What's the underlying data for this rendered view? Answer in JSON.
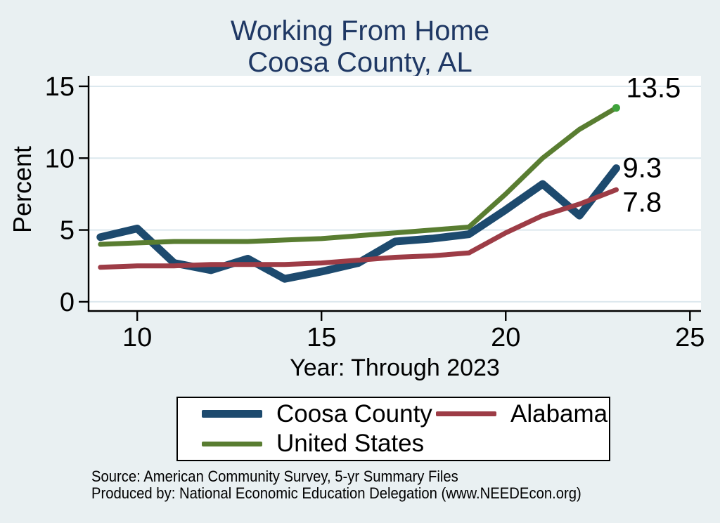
{
  "title": {
    "line1": "Working From Home",
    "line2": "Coosa County, AL"
  },
  "chart_data": {
    "type": "line",
    "x": [
      9,
      10,
      11,
      12,
      13,
      14,
      15,
      16,
      17,
      18,
      19,
      20,
      21,
      22,
      23
    ],
    "series": [
      {
        "name": "Coosa County",
        "color": "#1d4a6e",
        "line_width": 11,
        "end_label": "9.3",
        "values": [
          4.5,
          5.1,
          2.7,
          2.2,
          3.0,
          1.6,
          2.1,
          2.7,
          4.2,
          4.4,
          4.7,
          6.4,
          8.2,
          6.0,
          9.3
        ]
      },
      {
        "name": "Alabama",
        "color": "#9d3c46",
        "line_width": 7,
        "end_label": "7.8",
        "values": [
          2.4,
          2.5,
          2.5,
          2.6,
          2.6,
          2.6,
          2.7,
          2.9,
          3.1,
          3.2,
          3.4,
          4.8,
          6.0,
          6.8,
          7.8
        ]
      },
      {
        "name": "United States",
        "color": "#597d31",
        "line_width": 7,
        "end_label": "13.5",
        "end_dot": true,
        "end_dot_color": "#3fa33c",
        "values": [
          4.0,
          4.1,
          4.2,
          4.2,
          4.2,
          4.3,
          4.4,
          4.6,
          4.8,
          5.0,
          5.2,
          7.5,
          10.0,
          12.0,
          13.5
        ]
      }
    ],
    "title": "Working From Home — Coosa County, AL",
    "xlabel": "Year: Through 2023",
    "ylabel": "Percent",
    "x_ticks": [
      {
        "value": 10,
        "label": "10"
      },
      {
        "value": 15,
        "label": "15"
      },
      {
        "value": 20,
        "label": "20"
      },
      {
        "value": 25,
        "label": "25"
      }
    ],
    "y_ticks": [
      {
        "value": 0,
        "label": "0"
      },
      {
        "value": 5,
        "label": "5"
      },
      {
        "value": 10,
        "label": "10"
      },
      {
        "value": 15,
        "label": "15"
      }
    ],
    "xlim": [
      8.68,
      25.3
    ],
    "ylim": [
      -0.64,
      15.73
    ],
    "grid": true,
    "legend_position": "bottom"
  },
  "legend": {
    "items": [
      {
        "label": "Coosa County",
        "color": "#1d4a6e",
        "swatch_height": 11
      },
      {
        "label": "Alabama",
        "color": "#9d3c46",
        "swatch_height": 7
      },
      {
        "label": "United States",
        "color": "#597d31",
        "swatch_height": 7
      }
    ]
  },
  "footer": {
    "line1": "Source: American Community Survey, 5-yr Summary Files",
    "line2": "Produced by: National Economic Education Delegation (www.NEEDEcon.org)"
  },
  "colors": {
    "background": "#e9f0f2",
    "plot_background": "#ffffff",
    "gridline": "#dce8ee",
    "axis": "#000000",
    "title_text": "#1f3864",
    "tick_text": "#000000"
  }
}
